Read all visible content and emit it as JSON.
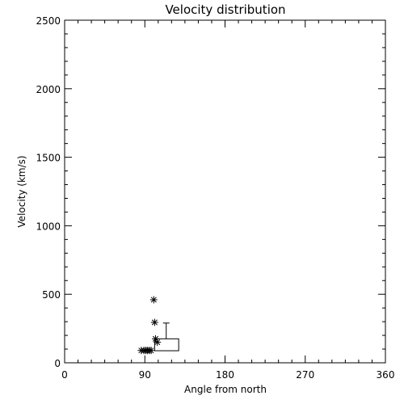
{
  "chart_data": {
    "type": "scatter",
    "title": "Velocity distribution",
    "xlabel": "Angle from north",
    "ylabel": "Velocity (km/s)",
    "xlim": [
      0,
      360
    ],
    "ylim": [
      0,
      2500
    ],
    "xticks": [
      0,
      90,
      180,
      270,
      360
    ],
    "yticks": [
      0,
      500,
      1000,
      1500,
      2000,
      2500
    ],
    "grid": false,
    "points": [
      {
        "x": 86,
        "y": 90
      },
      {
        "x": 89,
        "y": 90
      },
      {
        "x": 91,
        "y": 90
      },
      {
        "x": 93,
        "y": 90
      },
      {
        "x": 95,
        "y": 90
      },
      {
        "x": 97,
        "y": 90
      },
      {
        "x": 100,
        "y": 460
      },
      {
        "x": 101,
        "y": 295
      },
      {
        "x": 102,
        "y": 175
      },
      {
        "x": 104,
        "y": 150
      }
    ],
    "boxplot": {
      "q1_x": 101,
      "q3_x": 128,
      "q1_y": 88,
      "q3_y": 175,
      "median_x": 114,
      "whisker_top": 290
    }
  }
}
